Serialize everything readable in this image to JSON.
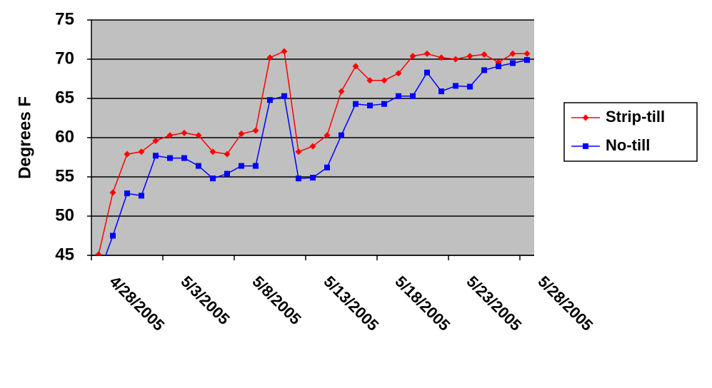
{
  "chart_data": {
    "type": "line",
    "y_label": "Degrees F",
    "categories": [
      "4/28/2005",
      null,
      null,
      null,
      null,
      "5/3/2005",
      null,
      null,
      null,
      null,
      "5/8/2005",
      null,
      null,
      null,
      null,
      "5/13/2005",
      null,
      null,
      null,
      null,
      "5/18/2005",
      null,
      null,
      null,
      null,
      "5/23/2005",
      null,
      null,
      null,
      null,
      "5/28/2005"
    ],
    "series": [
      {
        "name": "Strip-till",
        "color": "#ff0000",
        "marker": "diamond",
        "values": [
          45.1,
          53.0,
          57.9,
          58.2,
          59.6,
          60.3,
          60.6,
          60.3,
          58.2,
          57.9,
          60.5,
          60.9,
          70.2,
          71.0,
          58.2,
          58.9,
          60.3,
          65.9,
          69.1,
          67.3,
          67.3,
          68.2,
          70.4,
          70.7,
          70.2,
          70.0,
          70.4,
          70.6,
          69.6,
          70.7,
          70.7
        ]
      },
      {
        "name": "No-till",
        "color": "#0000ff",
        "marker": "square",
        "values": [
          42.5,
          47.5,
          52.9,
          52.6,
          57.7,
          57.4,
          57.4,
          56.4,
          54.8,
          55.4,
          56.4,
          56.4,
          64.8,
          65.3,
          54.8,
          54.9,
          56.2,
          60.3,
          64.3,
          64.1,
          64.3,
          65.3,
          65.3,
          68.3,
          65.9,
          66.6,
          66.5,
          68.6,
          69.1,
          69.5,
          69.9
        ]
      }
    ],
    "ylim": [
      45,
      75
    ],
    "yticks": [
      45,
      50,
      55,
      60,
      65,
      70,
      75
    ],
    "grid": true,
    "plot_background": "#c0c0c0",
    "legend": "right"
  }
}
